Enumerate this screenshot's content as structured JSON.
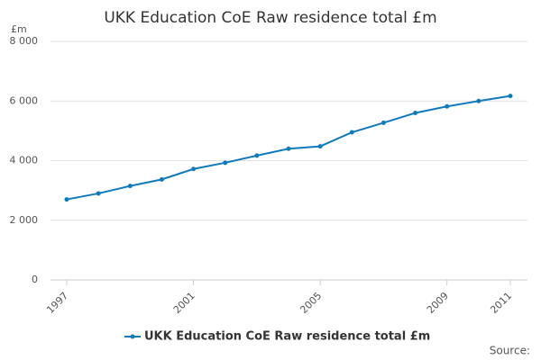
{
  "chart_data": {
    "type": "line",
    "title": "UKK Education CoE Raw residence total £m",
    "y_unit": "£m",
    "source": "Source:",
    "x": [
      1997,
      1998,
      1999,
      2000,
      2001,
      2002,
      2003,
      2004,
      2005,
      2006,
      2007,
      2008,
      2009,
      2010,
      2011
    ],
    "series": [
      {
        "name": "UKK Education CoE Raw residence total £m",
        "color": "#0f7bbd",
        "values": [
          2700,
          2900,
          3150,
          3370,
          3720,
          3930,
          4170,
          4400,
          4480,
          4950,
          5270,
          5600,
          5820,
          6000,
          6170
        ]
      }
    ],
    "xlim": [
      1997,
      2011
    ],
    "xticks": [
      1997,
      2001,
      2005,
      2009,
      2011
    ],
    "ylim": [
      0,
      8000
    ],
    "yticks": [
      0,
      {
        "value": 2000,
        "label": "2 000"
      },
      {
        "value": 4000,
        "label": "4 000"
      },
      {
        "value": 6000,
        "label": "6 000"
      },
      {
        "value": 8000,
        "label": "8 000"
      }
    ],
    "grid": true
  }
}
